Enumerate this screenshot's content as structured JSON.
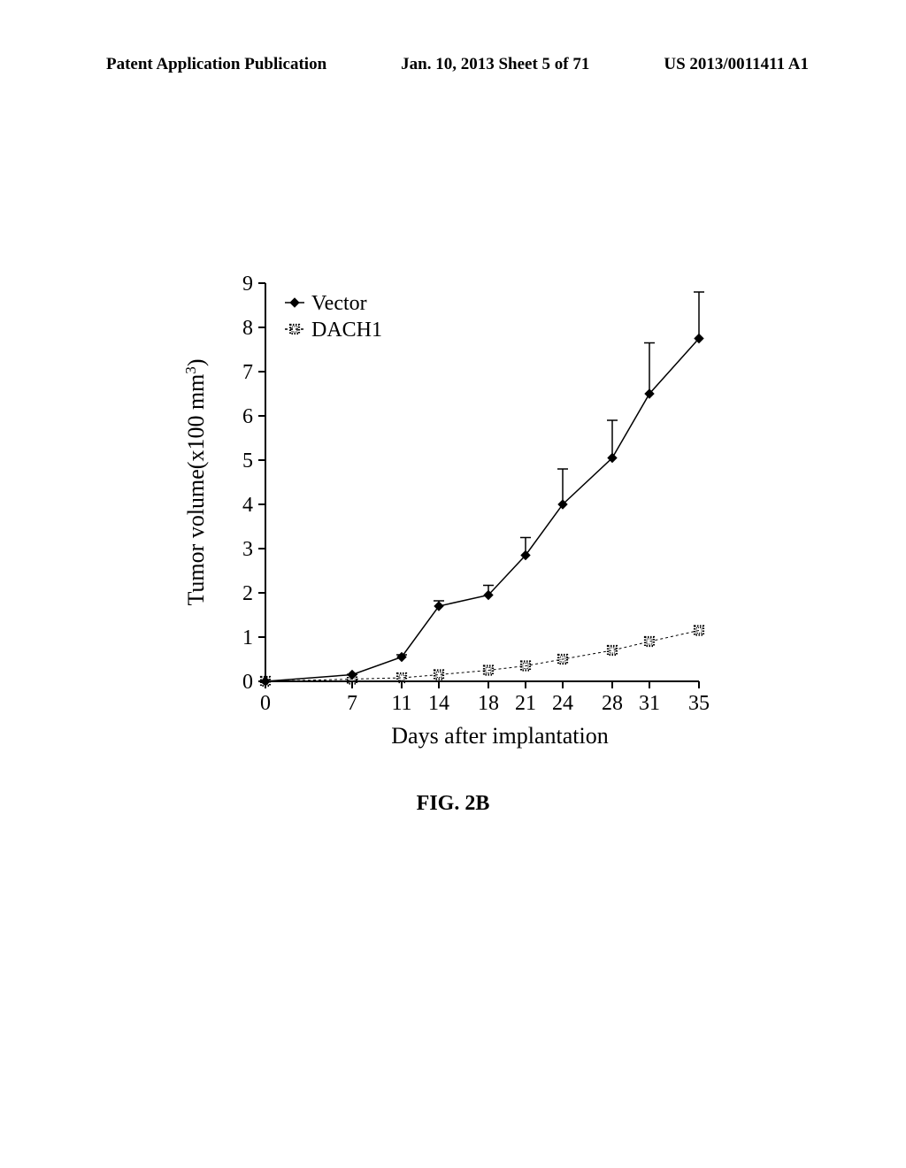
{
  "header": {
    "left": "Patent Application Publication",
    "center": "Jan. 10, 2013  Sheet 5 of 71",
    "right": "US 2013/0011411 A1"
  },
  "caption": "FIG. 2B",
  "chart": {
    "type": "line",
    "xlabel": "Days after implantation",
    "ylabel": "Tumor volume(x100 mm",
    "ylabel_sup": "3",
    "ylabel_suffix": ")",
    "xlim": [
      0,
      35
    ],
    "ylim": [
      0,
      9
    ],
    "yticks": [
      0,
      1,
      2,
      3,
      4,
      5,
      6,
      7,
      8,
      9
    ],
    "xticks": [
      0,
      7,
      11,
      14,
      18,
      21,
      24,
      28,
      31,
      35
    ],
    "background_color": "#ffffff",
    "axis_color": "#000000",
    "tick_color": "#000000",
    "label_fontsize": 26,
    "tick_fontsize": 24,
    "legend": {
      "items": [
        {
          "label": "Vector",
          "color": "#000000",
          "marker": "diamond",
          "linestyle": "solid"
        },
        {
          "label": "DACH1",
          "color": "#000000",
          "marker": "square-dotted",
          "linestyle": "dashed"
        }
      ]
    },
    "series": [
      {
        "name": "Vector",
        "color": "#000000",
        "marker": "diamond",
        "linestyle": "solid",
        "line_width": 1.5,
        "x": [
          0,
          7,
          11,
          14,
          18,
          21,
          24,
          28,
          31,
          35
        ],
        "y": [
          0,
          0.15,
          0.55,
          1.7,
          1.95,
          2.85,
          4.0,
          5.05,
          6.5,
          7.75
        ],
        "err": [
          0,
          0,
          0.05,
          0.12,
          0.22,
          0.4,
          0.8,
          0.85,
          1.15,
          1.05
        ]
      },
      {
        "name": "DACH1",
        "color": "#000000",
        "marker": "square-dotted",
        "linestyle": "dashed",
        "line_width": 1,
        "x": [
          0,
          7,
          11,
          14,
          18,
          21,
          24,
          28,
          31,
          35
        ],
        "y": [
          0,
          0.05,
          0.08,
          0.15,
          0.25,
          0.35,
          0.5,
          0.7,
          0.9,
          1.15
        ],
        "err": [
          0,
          0,
          0,
          0,
          0,
          0,
          0,
          0,
          0,
          0
        ]
      }
    ]
  }
}
